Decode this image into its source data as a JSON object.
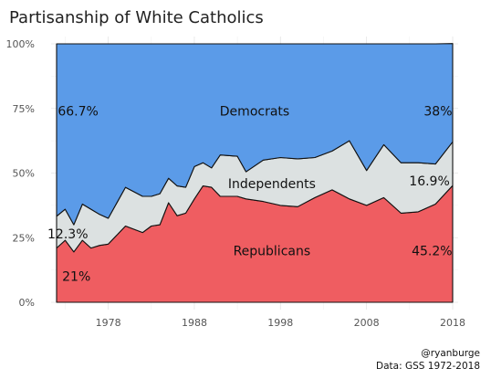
{
  "chart_data": {
    "type": "area",
    "title": "Partisanship of White Catholics",
    "xlabel": "",
    "ylabel": "",
    "xlim": [
      1972,
      2018
    ],
    "ylim": [
      0,
      100
    ],
    "x_ticks": [
      "1978",
      "1988",
      "1998",
      "2008",
      "2018"
    ],
    "y_ticks": [
      "0%",
      "25%",
      "50%",
      "75%",
      "100%"
    ],
    "x": [
      1972,
      1973,
      1974,
      1975,
      1976,
      1977,
      1978,
      1980,
      1982,
      1983,
      1984,
      1985,
      1986,
      1987,
      1988,
      1989,
      1990,
      1991,
      1993,
      1994,
      1996,
      1998,
      2000,
      2002,
      2004,
      2006,
      2008,
      2010,
      2012,
      2014,
      2016,
      2018
    ],
    "series": [
      {
        "name": "Republicans",
        "color": "#ef5d61",
        "values": [
          21,
          24,
          19.5,
          24,
          21,
          22,
          22.5,
          29.5,
          27,
          29.5,
          30,
          38.5,
          33.5,
          34.5,
          40,
          45,
          44.5,
          41,
          41,
          40,
          39,
          37.5,
          37,
          40.5,
          43.5,
          40,
          37.5,
          40.5,
          34.5,
          35,
          38,
          45.2
        ]
      },
      {
        "name": "Independents",
        "color": "#dce1e1",
        "values": [
          12.3,
          12,
          10.5,
          14,
          15,
          12,
          10,
          15,
          14,
          11.5,
          12,
          9.5,
          11.5,
          10,
          12.5,
          9,
          7.5,
          16,
          15.5,
          10.5,
          16,
          18.5,
          18.5,
          15.5,
          15,
          22.5,
          13.5,
          20.5,
          19.5,
          19,
          15.5,
          16.9
        ]
      },
      {
        "name": "Democrats",
        "color": "#5b9be8",
        "values": [
          66.7,
          64,
          70,
          62,
          64,
          66,
          67.5,
          55.5,
          59,
          59,
          58,
          52,
          55,
          55.5,
          47.5,
          46,
          48,
          43,
          43.5,
          49.5,
          45,
          44,
          44.5,
          44,
          41.5,
          37.5,
          49,
          39,
          46,
          46,
          46.5,
          38
        ]
      }
    ],
    "series_labels": [
      {
        "text": "Democrats",
        "x": 1995,
        "y": 74
      },
      {
        "text": "Independents",
        "x": 1997,
        "y": 46
      },
      {
        "text": "Republicans",
        "x": 1997,
        "y": 20
      }
    ],
    "value_labels": [
      {
        "text": "66.7%",
        "x": 1974.5,
        "y": 74
      },
      {
        "text": "38%",
        "x": 2016.3,
        "y": 74
      },
      {
        "text": "12.3%",
        "x": 1973.3,
        "y": 26.5
      },
      {
        "text": "16.9%",
        "x": 2015.3,
        "y": 47
      },
      {
        "text": "21%",
        "x": 1974.3,
        "y": 10
      },
      {
        "text": "45.2%",
        "x": 2015.6,
        "y": 20
      }
    ]
  },
  "credits": {
    "author": "@ryanburge",
    "source": "Data: GSS 1972-2018"
  }
}
